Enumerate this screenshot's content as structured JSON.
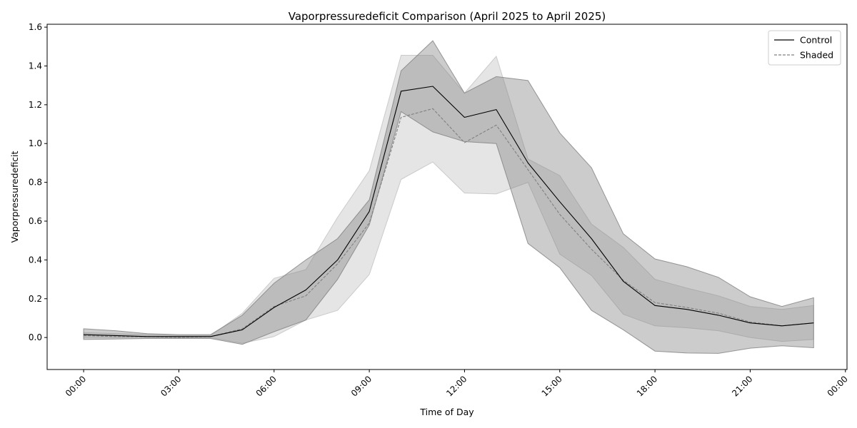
{
  "chart_data": {
    "type": "line",
    "title": "Vaporpressuredeficit Comparison (April 2025 to April 2025)",
    "xlabel": "Time of Day",
    "ylabel": "Vaporpressuredeficit",
    "x_tick_labels": [
      "00:00",
      "03:00",
      "06:00",
      "09:00",
      "12:00",
      "15:00",
      "18:00",
      "21:00",
      "00:00"
    ],
    "x_tick_hours": [
      0,
      3,
      6,
      9,
      12,
      15,
      18,
      21,
      24
    ],
    "xlim": [
      -1.15,
      24.05
    ],
    "ylim": [
      -0.165,
      1.615
    ],
    "y_ticks": [
      0.0,
      0.2,
      0.4,
      0.6,
      0.8,
      1.0,
      1.2,
      1.4,
      1.6
    ],
    "y_tick_labels": [
      "0.0",
      "0.2",
      "0.4",
      "0.6",
      "0.8",
      "1.0",
      "1.2",
      "1.4",
      "1.6"
    ],
    "hours": [
      0,
      1,
      2,
      3,
      4,
      5,
      6,
      7,
      8,
      9,
      10,
      11,
      12,
      13,
      14,
      15,
      16,
      17,
      18,
      19,
      20,
      21,
      22,
      23
    ],
    "legend_position": "top-right",
    "series": [
      {
        "name": "Control",
        "style": "solid",
        "color": "#000000",
        "band_color": "#808080",
        "values": [
          0.015,
          0.01,
          0.005,
          0.005,
          0.005,
          0.04,
          0.155,
          0.245,
          0.4,
          0.65,
          1.27,
          1.295,
          1.135,
          1.175,
          0.9,
          0.7,
          0.51,
          0.29,
          0.165,
          0.145,
          0.115,
          0.075,
          0.06,
          0.075
        ],
        "lower": [
          -0.01,
          -0.008,
          -0.005,
          -0.005,
          -0.005,
          -0.035,
          0.03,
          0.09,
          0.3,
          0.58,
          1.165,
          1.06,
          1.01,
          1.0,
          0.485,
          0.36,
          0.14,
          0.04,
          -0.07,
          -0.08,
          -0.082,
          -0.055,
          -0.043,
          -0.053
        ],
        "upper": [
          0.045,
          0.035,
          0.02,
          0.015,
          0.015,
          0.115,
          0.28,
          0.4,
          0.51,
          0.71,
          1.375,
          1.53,
          1.26,
          1.345,
          1.325,
          1.055,
          0.875,
          0.535,
          0.405,
          0.365,
          0.31,
          0.21,
          0.16,
          0.205
        ]
      },
      {
        "name": "Shaded",
        "style": "dashed",
        "color": "#808080",
        "band_color": "#c0c0c0",
        "values": [
          0.01,
          0.005,
          0.005,
          0.0,
          0.005,
          0.045,
          0.16,
          0.215,
          0.38,
          0.59,
          1.135,
          1.18,
          1.005,
          1.095,
          0.865,
          0.635,
          0.455,
          0.295,
          0.18,
          0.155,
          0.125,
          0.08,
          0.06,
          0.075
        ],
        "lower": [
          0.0,
          0.0,
          0.0,
          0.0,
          0.0,
          -0.03,
          0.005,
          0.09,
          0.14,
          0.325,
          0.815,
          0.905,
          0.745,
          0.74,
          0.8,
          0.43,
          0.32,
          0.12,
          0.06,
          0.05,
          0.035,
          0.0,
          -0.02,
          -0.01
        ],
        "upper": [
          0.025,
          0.02,
          0.015,
          0.01,
          0.01,
          0.125,
          0.305,
          0.35,
          0.62,
          0.86,
          1.455,
          1.455,
          1.26,
          1.45,
          0.92,
          0.835,
          0.585,
          0.465,
          0.3,
          0.255,
          0.215,
          0.16,
          0.145,
          0.165
        ]
      }
    ]
  }
}
